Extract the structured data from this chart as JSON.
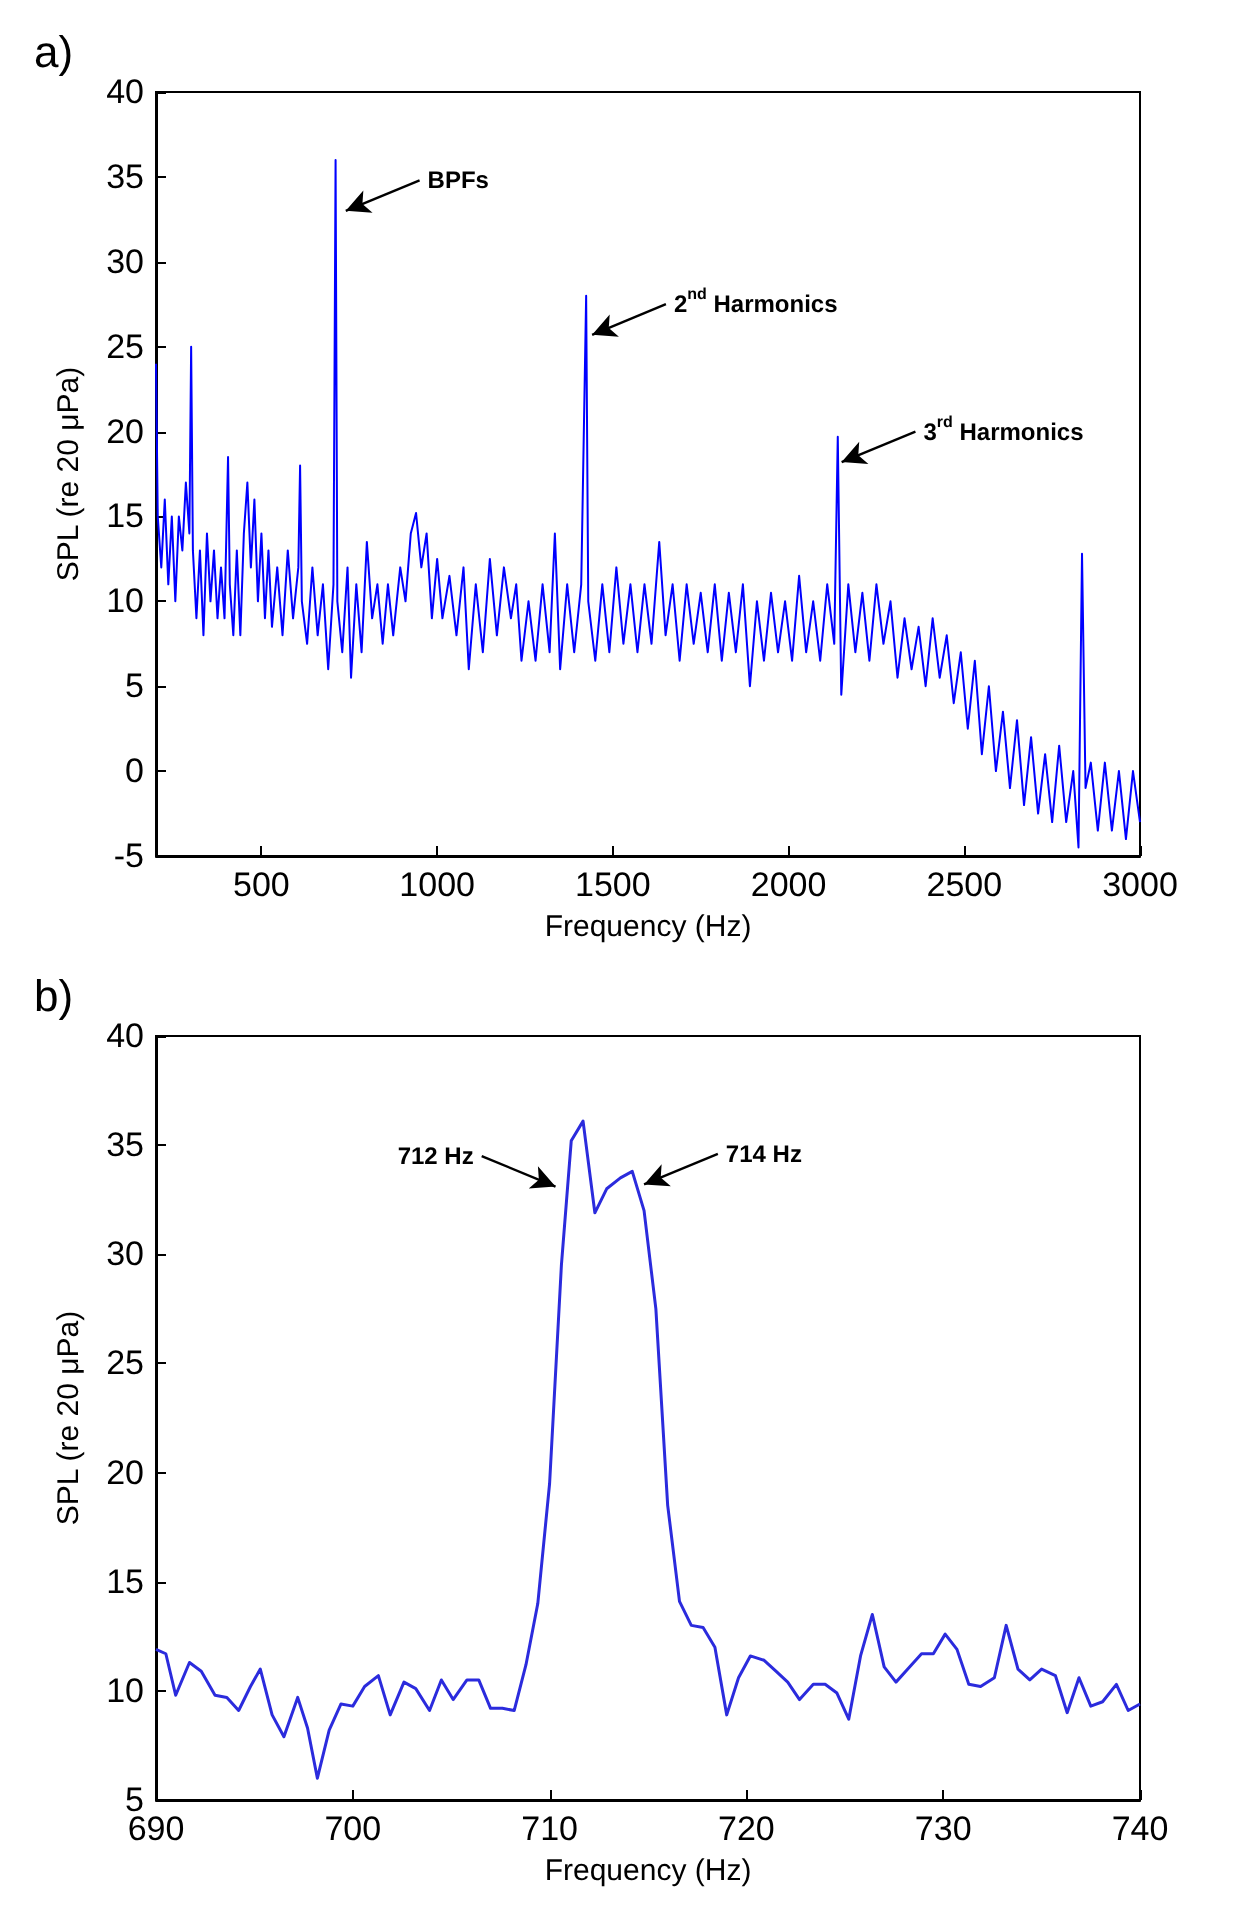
{
  "chart_data": [
    {
      "type": "line",
      "title": "a)",
      "xlabel": "Frequency (Hz)",
      "ylabel": "SPL (re 20 μPa)",
      "xlim": [
        200,
        3000
      ],
      "ylim": [
        -5,
        40
      ],
      "xticks": [
        500,
        1000,
        1500,
        2000,
        2500,
        3000
      ],
      "yticks": [
        -5,
        0,
        5,
        10,
        15,
        20,
        25,
        30,
        35,
        40
      ],
      "x": [
        200,
        205,
        215,
        225,
        235,
        245,
        255,
        265,
        275,
        285,
        295,
        300,
        305,
        315,
        325,
        335,
        345,
        355,
        365,
        375,
        385,
        395,
        405,
        410,
        420,
        430,
        440,
        450,
        460,
        470,
        480,
        490,
        500,
        510,
        520,
        530,
        545,
        560,
        575,
        590,
        605,
        610,
        615,
        630,
        645,
        660,
        675,
        690,
        705,
        711,
        716,
        730,
        745,
        755,
        770,
        785,
        800,
        815,
        830,
        845,
        860,
        875,
        895,
        910,
        925,
        940,
        955,
        970,
        985,
        1000,
        1015,
        1035,
        1055,
        1075,
        1090,
        1110,
        1130,
        1150,
        1170,
        1190,
        1210,
        1225,
        1240,
        1260,
        1280,
        1300,
        1320,
        1335,
        1350,
        1370,
        1390,
        1410,
        1424,
        1430,
        1450,
        1470,
        1490,
        1510,
        1530,
        1550,
        1570,
        1590,
        1610,
        1632,
        1650,
        1670,
        1690,
        1710,
        1730,
        1750,
        1770,
        1790,
        1810,
        1830,
        1850,
        1870,
        1890,
        1910,
        1930,
        1950,
        1970,
        1990,
        2010,
        2030,
        2050,
        2070,
        2090,
        2110,
        2130,
        2140,
        2150,
        2170,
        2190,
        2210,
        2230,
        2250,
        2270,
        2290,
        2310,
        2330,
        2350,
        2370,
        2390,
        2410,
        2430,
        2450,
        2470,
        2490,
        2510,
        2530,
        2550,
        2570,
        2590,
        2610,
        2630,
        2650,
        2670,
        2690,
        2710,
        2730,
        2750,
        2770,
        2790,
        2810,
        2825,
        2835,
        2845,
        2860,
        2880,
        2900,
        2920,
        2940,
        2960,
        2980,
        3000
      ],
      "series": [
        {
          "color": "#0000ff",
          "values": [
            24,
            15,
            12,
            16,
            11,
            15,
            10,
            15,
            13,
            17,
            14,
            25,
            13,
            9,
            13,
            8,
            14,
            10,
            13,
            9,
            12,
            9,
            18.5,
            11,
            8,
            13,
            8,
            14,
            17,
            12,
            16,
            10,
            14,
            9,
            13,
            8.5,
            12,
            8,
            13,
            9,
            12,
            18,
            10,
            7.5,
            12,
            8,
            11,
            6,
            11,
            36,
            10,
            7,
            12,
            5.5,
            11,
            7,
            13.5,
            9,
            11,
            7.5,
            11,
            8,
            12,
            10,
            14,
            15.2,
            12,
            14,
            9,
            12.5,
            9,
            11.5,
            8,
            12,
            6,
            11,
            7,
            12.5,
            8,
            12,
            9,
            11,
            6.5,
            10,
            6.5,
            11,
            7,
            14,
            6,
            11,
            7,
            11,
            28,
            10,
            6.5,
            11,
            7,
            12,
            7.5,
            11,
            7,
            11,
            7.5,
            13.5,
            8,
            11,
            6.5,
            11,
            7.5,
            10.5,
            7,
            11,
            6.5,
            10.5,
            7,
            11,
            5,
            10,
            6.5,
            10.5,
            7,
            10,
            6.5,
            11.5,
            7,
            10,
            6.5,
            11,
            7.5,
            19.7,
            4.5,
            11,
            7,
            10.5,
            6.5,
            11,
            7.5,
            10,
            5.5,
            9,
            6,
            8.5,
            5,
            9,
            5.5,
            8,
            4,
            7,
            2.5,
            6.5,
            1,
            5,
            0,
            3.5,
            -1,
            3,
            -2,
            2,
            -2.5,
            1,
            -3,
            1.5,
            -3,
            0,
            -4.5,
            12.8,
            -1,
            0.5,
            -3.5,
            0.5,
            -3.5,
            0,
            -4,
            0,
            -3
          ]
        }
      ],
      "annotations": [
        {
          "text": "BPFs",
          "x": 740,
          "y": 33
        },
        {
          "text": "2$^{nd}$ Harmonics",
          "x": 1441,
          "y": 25.7
        },
        {
          "text": "3$^{rd}$ Harmonics",
          "x": 2151,
          "y": 18.2
        }
      ]
    },
    {
      "type": "line",
      "title": "b)",
      "xlabel": "Frequency (Hz)",
      "ylabel": "SPL (re 20 μPa)",
      "xlim": [
        690,
        740
      ],
      "ylim": [
        5,
        40
      ],
      "xticks": [
        690,
        700,
        710,
        720,
        730,
        740
      ],
      "yticks": [
        5,
        10,
        15,
        20,
        25,
        30,
        35,
        40
      ],
      "x": [
        690,
        690.5,
        691,
        691.7,
        692.3,
        693,
        693.6,
        694.2,
        694.8,
        695.3,
        695.9,
        696.5,
        697.2,
        697.7,
        698.2,
        698.8,
        699.4,
        700,
        700.6,
        701.3,
        701.9,
        702.6,
        703.2,
        703.9,
        704.5,
        705.1,
        705.8,
        706.4,
        707,
        707.6,
        708.2,
        708.8,
        709.4,
        710,
        710.6,
        711.1,
        711.7,
        712.3,
        712.9,
        713.6,
        714.2,
        714.8,
        715.4,
        716,
        716.6,
        717.2,
        717.8,
        718.4,
        719,
        719.6,
        720.2,
        720.9,
        721.5,
        722.1,
        722.7,
        723.4,
        724,
        724.6,
        725.2,
        725.8,
        726.4,
        727,
        727.6,
        728.2,
        728.9,
        729.5,
        730.1,
        730.7,
        731.3,
        731.9,
        732.6,
        733.2,
        733.8,
        734.4,
        735,
        735.7,
        736.3,
        736.9,
        737.5,
        738.1,
        738.8,
        739.4,
        740
      ],
      "series": [
        {
          "color": "#2b2bdd",
          "values": [
            11.9,
            11.7,
            9.8,
            11.3,
            10.9,
            9.8,
            9.7,
            9.1,
            10.2,
            11,
            8.9,
            7.9,
            9.7,
            8.3,
            6,
            8.2,
            9.4,
            9.3,
            10.2,
            10.7,
            8.9,
            10.4,
            10.1,
            9.1,
            10.5,
            9.6,
            10.5,
            10.5,
            9.2,
            9.2,
            9.1,
            11.2,
            14,
            19.5,
            29.5,
            35.2,
            36.1,
            31.9,
            33,
            33.5,
            33.8,
            32,
            27.5,
            18.5,
            14.1,
            13,
            12.9,
            12,
            8.9,
            10.6,
            11.6,
            11.4,
            10.9,
            10.4,
            9.6,
            10.3,
            10.3,
            9.9,
            8.7,
            11.6,
            13.5,
            11.1,
            10.4,
            11,
            11.7,
            11.7,
            12.6,
            11.9,
            10.3,
            10.2,
            10.6,
            13,
            11,
            10.5,
            11,
            10.7,
            9,
            10.6,
            9.3,
            9.5,
            10.3,
            9.1,
            9.4
          ]
        }
      ],
      "annotations": [
        {
          "text": "712 Hz",
          "x": 710.3,
          "y": 33.1
        },
        {
          "text": "714 Hz",
          "x": 714.8,
          "y": 33.2
        }
      ]
    }
  ]
}
